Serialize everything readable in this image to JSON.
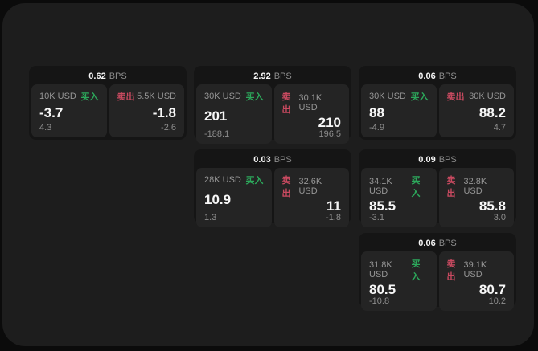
{
  "labels": {
    "bps_unit": "BPS",
    "buy": "买入",
    "sell": "卖出"
  },
  "colors": {
    "page_bg": "#0b0b0b",
    "window_bg": "#1d1d1d",
    "card_bg": "#151515",
    "panel_bg": "#242424",
    "text_primary": "#f5f5f5",
    "text_muted": "#8d8d8d",
    "buy_green": "#2ca85b",
    "sell_red": "#c94a60"
  },
  "cards": [
    {
      "row": 1,
      "col": 1,
      "bps": "0.62",
      "buy": {
        "amount": "10K USD",
        "price": "-3.7",
        "delta": "4.3"
      },
      "sell": {
        "amount": "5.5K USD",
        "price": "-1.8",
        "delta": "-2.6"
      }
    },
    {
      "row": 1,
      "col": 2,
      "bps": "2.92",
      "buy": {
        "amount": "30K USD",
        "price": "201",
        "delta": "-188.1"
      },
      "sell": {
        "amount": "30.1K USD",
        "price": "210",
        "delta": "196.5"
      }
    },
    {
      "row": 1,
      "col": 3,
      "bps": "0.06",
      "buy": {
        "amount": "30K USD",
        "price": "88",
        "delta": "-4.9"
      },
      "sell": {
        "amount": "30K USD",
        "price": "88.2",
        "delta": "4.7"
      }
    },
    {
      "row": 2,
      "col": 2,
      "bps": "0.03",
      "buy": {
        "amount": "28K USD",
        "price": "10.9",
        "delta": "1.3"
      },
      "sell": {
        "amount": "32.6K USD",
        "price": "11",
        "delta": "-1.8"
      }
    },
    {
      "row": 2,
      "col": 3,
      "bps": "0.09",
      "buy": {
        "amount": "34.1K USD",
        "price": "85.5",
        "delta": "-3.1"
      },
      "sell": {
        "amount": "32.8K USD",
        "price": "85.8",
        "delta": "3.0"
      }
    },
    {
      "row": 3,
      "col": 3,
      "bps": "0.06",
      "buy": {
        "amount": "31.8K USD",
        "price": "80.5",
        "delta": "-10.8"
      },
      "sell": {
        "amount": "39.1K USD",
        "price": "80.7",
        "delta": "10.2"
      }
    }
  ]
}
